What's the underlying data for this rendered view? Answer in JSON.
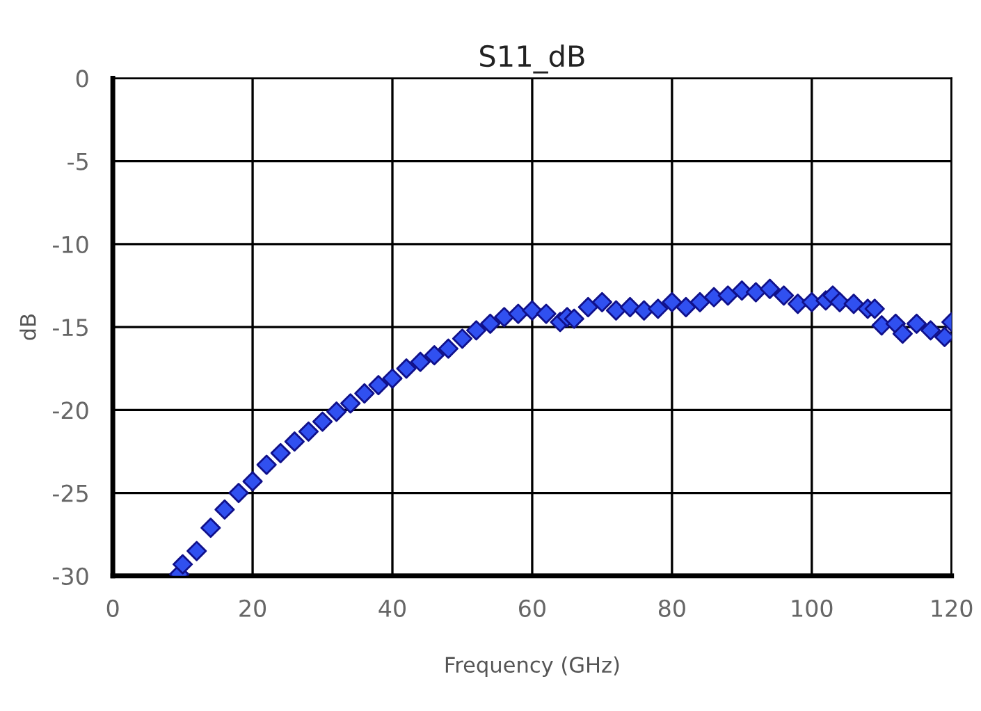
{
  "chart_data": {
    "type": "scatter",
    "title": "S11_dB",
    "xlabel": "Frequency (GHz)",
    "ylabel": "dB",
    "x": [
      9.5,
      10,
      12,
      14,
      16,
      18,
      20,
      22,
      24,
      26,
      28,
      30,
      32,
      34,
      36,
      38,
      40,
      42,
      44,
      46,
      48,
      50,
      52,
      54,
      56,
      58,
      60,
      62,
      64,
      65,
      66,
      68,
      70,
      72,
      74,
      76,
      78,
      80,
      82,
      84,
      86,
      88,
      90,
      92,
      94,
      96,
      98,
      100,
      102,
      103,
      104,
      106,
      108,
      109,
      110,
      112,
      113,
      115,
      117,
      119,
      120
    ],
    "series": [
      {
        "color": "#3050f0",
        "values": [
          -29.9,
          -29.3,
          -28.5,
          -27.1,
          -26.0,
          -25.0,
          -24.3,
          -23.3,
          -22.6,
          -21.9,
          -21.3,
          -20.7,
          -20.1,
          -19.6,
          -19.0,
          -18.5,
          -18.1,
          -17.5,
          -17.1,
          -16.7,
          -16.3,
          -15.7,
          -15.2,
          -14.8,
          -14.4,
          -14.2,
          -14.0,
          -14.2,
          -14.7,
          -14.4,
          -14.5,
          -13.8,
          -13.5,
          -14.0,
          -13.8,
          -14.0,
          -13.9,
          -13.5,
          -13.8,
          -13.5,
          -13.2,
          -13.1,
          -12.8,
          -12.9,
          -12.7,
          -13.1,
          -13.6,
          -13.5,
          -13.4,
          -13.1,
          -13.5,
          -13.6,
          -13.9,
          -13.9,
          -14.9,
          -14.8,
          -15.4,
          -14.8,
          -15.2,
          -15.6,
          -14.7
        ]
      }
    ],
    "xlim": [
      0,
      120
    ],
    "xticks": [
      0,
      20,
      40,
      60,
      80,
      100,
      120
    ],
    "ylim": [
      -30,
      0
    ],
    "yticks": [
      -30,
      -25,
      -20,
      -15,
      -10,
      -5,
      0
    ],
    "grid": true,
    "marker": "diamond",
    "legend": false
  }
}
